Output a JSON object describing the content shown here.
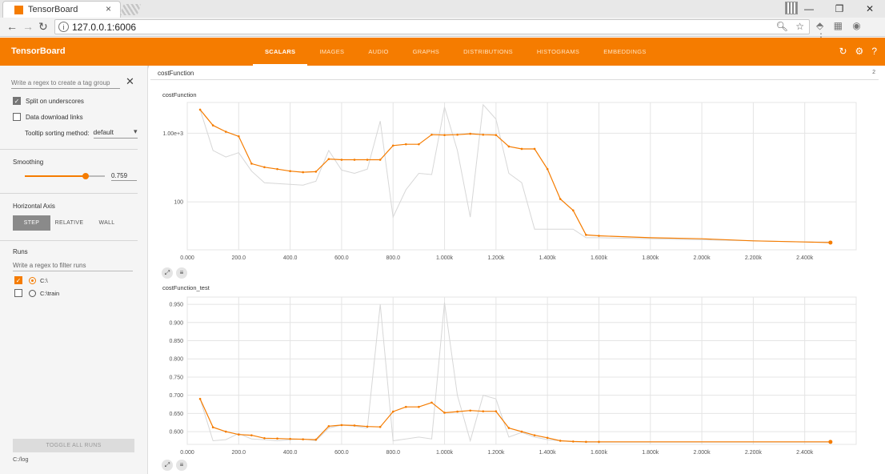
{
  "browser": {
    "tab_title": "TensorBoard",
    "url": "127.0.0.1:6006"
  },
  "header": {
    "brand": "TensorBoard",
    "tabs": [
      {
        "label": "SCALARS",
        "active": true
      },
      {
        "label": "IMAGES",
        "active": false
      },
      {
        "label": "AUDIO",
        "active": false
      },
      {
        "label": "GRAPHS",
        "active": false
      },
      {
        "label": "DISTRIBUTIONS",
        "active": false
      },
      {
        "label": "HISTOGRAMS",
        "active": false
      },
      {
        "label": "EMBEDDINGS",
        "active": false
      }
    ],
    "icons": [
      "reload-icon",
      "settings-icon",
      "help-icon"
    ]
  },
  "sidebar": {
    "tag_regex_placeholder": "Write a regex to create a tag group",
    "split_on_underscores": {
      "label": "Split on underscores",
      "checked": true
    },
    "data_download_links": {
      "label": "Data download links",
      "checked": false
    },
    "tooltip_sorting": {
      "label": "Tooltip sorting method:",
      "value": "default"
    },
    "smoothing": {
      "title": "Smoothing",
      "value": "0.759",
      "fraction": 0.759
    },
    "horizontal_axis": {
      "title": "Horizontal Axis",
      "options": [
        {
          "label": "STEP",
          "active": true
        },
        {
          "label": "RELATIVE",
          "active": false
        },
        {
          "label": "WALL",
          "active": false
        }
      ]
    },
    "runs": {
      "title": "Runs",
      "filter_placeholder": "Write a regex to filter runs",
      "items": [
        {
          "name": "C:\\",
          "checked": true
        },
        {
          "name": "C:\\train",
          "checked": false
        }
      ]
    },
    "toggle_all_label": "TOGGLE ALL RUNS",
    "logdir": "C:/log"
  },
  "main": {
    "category": "costFunction",
    "category_count": "2"
  },
  "colors": {
    "accent": "#f57c00",
    "raw_series": "#d7d7d7"
  },
  "chart_data": [
    {
      "type": "line",
      "title": "costFunction",
      "xscale": "linear",
      "yscale": "log",
      "xlim": [
        0,
        2600
      ],
      "ylim": [
        20,
        2800
      ],
      "x_ticks": [
        "0.000",
        "200.0",
        "400.0",
        "600.0",
        "800.0",
        "1.000k",
        "1.200k",
        "1.400k",
        "1.600k",
        "1.800k",
        "2.000k",
        "2.200k",
        "2.400k"
      ],
      "x_tick_values": [
        0,
        200,
        400,
        600,
        800,
        1000,
        1200,
        1400,
        1600,
        1800,
        2000,
        2200,
        2400
      ],
      "y_ticks": [
        "100",
        "1.00e+3"
      ],
      "y_tick_values": [
        100,
        1000
      ],
      "grid": true,
      "series": [
        {
          "role": "raw",
          "x": [
            50,
            100,
            150,
            200,
            250,
            300,
            350,
            400,
            450,
            500,
            550,
            600,
            650,
            700,
            750,
            800,
            850,
            900,
            950,
            1000,
            1050,
            1100,
            1150,
            1200,
            1250,
            1300,
            1350,
            1400,
            1450,
            1500,
            1550,
            1600,
            1800,
            2000,
            2200,
            2400,
            2500
          ],
          "y": [
            2200,
            560,
            450,
            520,
            280,
            190,
            185,
            180,
            175,
            200,
            560,
            290,
            260,
            300,
            1500,
            60,
            150,
            260,
            250,
            2400,
            560,
            60,
            2600,
            1600,
            260,
            190,
            40,
            40,
            40,
            40,
            30,
            30,
            29,
            28,
            27,
            26,
            26
          ]
        },
        {
          "role": "smoothed",
          "x": [
            50,
            100,
            150,
            200,
            250,
            300,
            350,
            400,
            450,
            500,
            550,
            600,
            650,
            700,
            750,
            800,
            850,
            900,
            950,
            1000,
            1050,
            1100,
            1150,
            1200,
            1250,
            1300,
            1350,
            1400,
            1450,
            1500,
            1550,
            1600,
            1800,
            2000,
            2200,
            2400,
            2500
          ],
          "y": [
            2200,
            1300,
            1050,
            900,
            360,
            320,
            300,
            280,
            270,
            275,
            420,
            410,
            410,
            410,
            410,
            660,
            690,
            690,
            950,
            940,
            950,
            980,
            950,
            940,
            640,
            590,
            590,
            300,
            110,
            75,
            33,
            32,
            30,
            29,
            27,
            26,
            25.5
          ]
        }
      ]
    },
    {
      "type": "line",
      "title": "costFunction_test",
      "xscale": "linear",
      "yscale": "linear",
      "xlim": [
        0,
        2600
      ],
      "ylim": [
        0.565,
        0.97
      ],
      "x_ticks": [
        "0.000",
        "200.0",
        "400.0",
        "600.0",
        "800.0",
        "1.000k",
        "1.200k",
        "1.400k",
        "1.600k",
        "1.800k",
        "2.000k",
        "2.200k",
        "2.400k"
      ],
      "x_tick_values": [
        0,
        200,
        400,
        600,
        800,
        1000,
        1200,
        1400,
        1600,
        1800,
        2000,
        2200,
        2400
      ],
      "y_ticks": [
        "0.600",
        "0.650",
        "0.700",
        "0.750",
        "0.800",
        "0.850",
        "0.900",
        "0.950"
      ],
      "y_tick_values": [
        0.6,
        0.65,
        0.7,
        0.75,
        0.8,
        0.85,
        0.9,
        0.95
      ],
      "grid": true,
      "series": [
        {
          "role": "raw",
          "x": [
            50,
            100,
            150,
            200,
            250,
            300,
            350,
            400,
            450,
            500,
            550,
            600,
            650,
            700,
            750,
            800,
            850,
            900,
            950,
            1000,
            1050,
            1100,
            1150,
            1200,
            1250,
            1300,
            1350,
            1400,
            1450,
            1500,
            1550,
            1600,
            1800,
            2000,
            2200,
            2400,
            2500
          ],
          "y": [
            0.69,
            0.575,
            0.578,
            0.595,
            0.58,
            0.578,
            0.575,
            0.578,
            0.58,
            0.575,
            0.61,
            0.618,
            0.615,
            0.61,
            0.95,
            0.575,
            0.58,
            0.585,
            0.58,
            0.955,
            0.7,
            0.575,
            0.7,
            0.69,
            0.585,
            0.598,
            0.585,
            0.578,
            0.575,
            0.572,
            0.571,
            0.571,
            0.571,
            0.571,
            0.571,
            0.571,
            0.571
          ]
        },
        {
          "role": "smoothed",
          "x": [
            50,
            100,
            150,
            200,
            250,
            300,
            350,
            400,
            450,
            500,
            550,
            600,
            650,
            700,
            750,
            800,
            850,
            900,
            950,
            1000,
            1050,
            1100,
            1150,
            1200,
            1250,
            1300,
            1350,
            1400,
            1450,
            1500,
            1550,
            1600,
            1800,
            2000,
            2200,
            2400,
            2500
          ],
          "y": [
            0.69,
            0.612,
            0.6,
            0.592,
            0.59,
            0.582,
            0.581,
            0.58,
            0.579,
            0.578,
            0.615,
            0.618,
            0.617,
            0.614,
            0.613,
            0.655,
            0.668,
            0.668,
            0.68,
            0.652,
            0.655,
            0.658,
            0.656,
            0.656,
            0.61,
            0.6,
            0.59,
            0.583,
            0.575,
            0.573,
            0.572,
            0.572,
            0.572,
            0.572,
            0.572,
            0.572,
            0.572
          ]
        }
      ]
    }
  ]
}
